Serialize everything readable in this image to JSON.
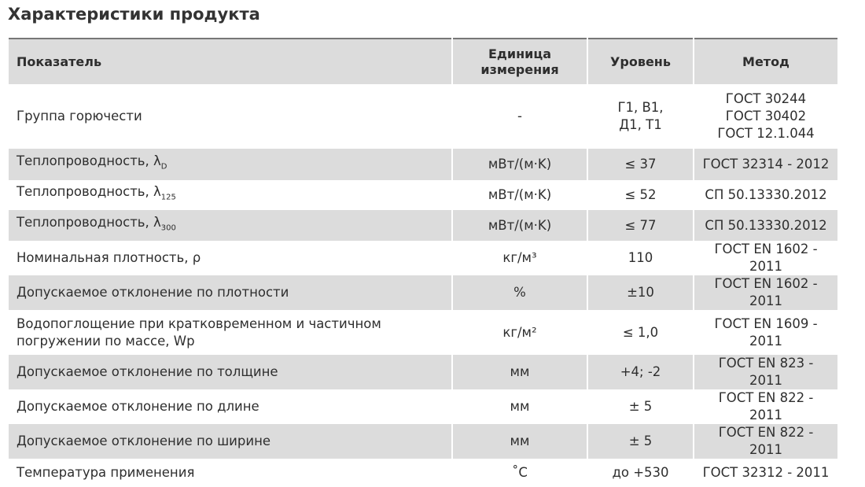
{
  "title": "Характеристики продукта",
  "headers": [
    "Показатель",
    "Единица измерения",
    "Уровень",
    "Метод"
  ],
  "rows": [
    {
      "name": "Группа горючести",
      "sub": "",
      "unit": "-",
      "level": "Г1, В1, Д1, Т1",
      "method": "ГОСТ 30244\nГОСТ 30402\nГОСТ 12.1.044"
    },
    {
      "name": "Теплопроводность, λ",
      "sub": "D",
      "unit": "мВт/(м·K)",
      "level": "≤ 37",
      "method": "ГОСТ 32314 - 2012"
    },
    {
      "name": "Теплопроводность, λ",
      "sub": "125",
      "unit": "мВт/(м·K)",
      "level": "≤ 52",
      "method": "СП 50.13330.2012"
    },
    {
      "name": "Теплопроводность, λ",
      "sub": "300",
      "unit": "мВт/(м·K)",
      "level": "≤ 77",
      "method": "СП 50.13330.2012"
    },
    {
      "name": "Номинальная плотность, ρ",
      "sub": "",
      "unit": "кг/м³",
      "level": "110",
      "method": "ГОСТ EN 1602 - 2011"
    },
    {
      "name": "Допускаемое отклонение по плотности",
      "sub": "",
      "unit": "%",
      "level": "±10",
      "method": "ГОСТ EN 1602 - 2011"
    },
    {
      "name": "Водопоглощение при кратковременном и частичном\nпогружении по массе, Wp",
      "sub": "",
      "unit": "кг/м²",
      "level": "≤ 1,0",
      "method": "ГОСТ EN 1609 - 2011"
    },
    {
      "name": "Допускаемое отклонение по толщине",
      "sub": "",
      "unit": "мм",
      "level": "+4; -2",
      "method": "ГОСТ EN 823 - 2011"
    },
    {
      "name": "Допускаемое отклонение по длине",
      "sub": "",
      "unit": "мм",
      "level": "± 5",
      "method": "ГОСТ EN 822 - 2011"
    },
    {
      "name": "Допускаемое отклонение по ширине",
      "sub": "",
      "unit": "мм",
      "level": "± 5",
      "method": "ГОСТ EN 822 - 2011"
    },
    {
      "name": "Температура применения",
      "sub": "",
      "unit": "˚C",
      "level": "до +530",
      "method": "ГОСТ 32312 - 2011"
    }
  ]
}
